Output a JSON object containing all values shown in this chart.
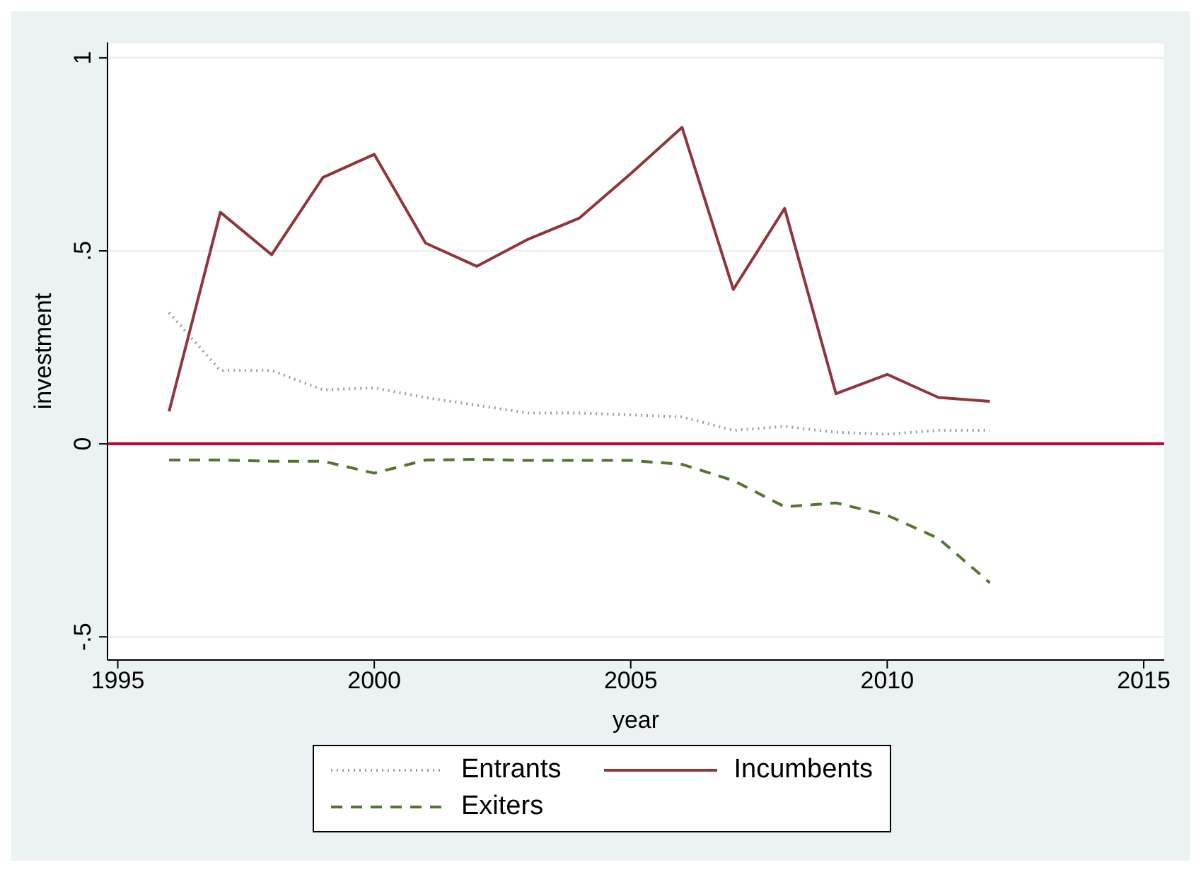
{
  "chart_data": {
    "type": "line",
    "xlabel": "year",
    "ylabel": "investment",
    "x": [
      1996,
      1997,
      1998,
      1999,
      2000,
      2001,
      2002,
      2003,
      2004,
      2005,
      2006,
      2007,
      2008,
      2009,
      2010,
      2011,
      2012
    ],
    "series": [
      {
        "name": "Entrants",
        "color": "#8ca1b5",
        "line_style": "dotted",
        "values": [
          0.34,
          0.19,
          0.19,
          0.14,
          0.145,
          0.12,
          0.1,
          0.08,
          0.08,
          0.075,
          0.07,
          0.035,
          0.045,
          0.03,
          0.025,
          0.035,
          0.035
        ]
      },
      {
        "name": "Incumbents",
        "color": "#90353b",
        "line_style": "solid",
        "values": [
          0.084,
          0.6,
          0.49,
          0.69,
          0.75,
          0.52,
          0.46,
          0.53,
          0.585,
          0.7,
          0.82,
          0.4,
          0.61,
          0.13,
          0.18,
          0.12,
          0.11
        ]
      },
      {
        "name": "Exiters",
        "color": "#55752f",
        "line_style": "dashed",
        "values": [
          -0.042,
          -0.042,
          -0.045,
          -0.045,
          -0.076,
          -0.042,
          -0.04,
          -0.043,
          -0.043,
          -0.043,
          -0.053,
          -0.095,
          -0.163,
          -0.153,
          -0.185,
          -0.245,
          -0.36
        ]
      }
    ],
    "xlim": [
      1994.8,
      2015.4
    ],
    "xticks": [
      1995,
      2000,
      2005,
      2010,
      2015
    ],
    "ylim": [
      -0.56,
      1.04
    ],
    "yticks": [
      {
        "value": -0.5,
        "label": "-.5"
      },
      0,
      {
        "value": 0.5,
        "label": ".5"
      },
      1
    ],
    "ref_lines": [
      {
        "axis": "y",
        "value": 0,
        "color": "#c10534",
        "line_style": "solid"
      }
    ],
    "grid": "y",
    "legend": "bottom",
    "marker": "none"
  }
}
